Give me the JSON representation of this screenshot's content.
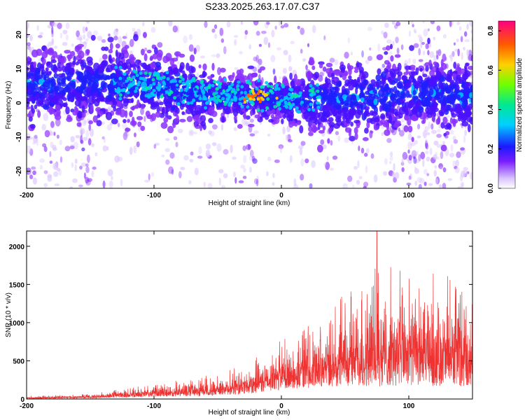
{
  "title": "S233.2025.263.17.07.C37",
  "chart_data": [
    {
      "type": "heatmap",
      "xlabel": "Height of straight line (km)",
      "ylabel": "Frequency (Hz)",
      "xlim": [
        -200,
        150
      ],
      "ylim": [
        -25,
        24
      ],
      "xticks": [
        -200,
        -100,
        0,
        100
      ],
      "xtick_labels": [
        "-200",
        "-100",
        "0",
        "100"
      ],
      "yticks": [
        -20,
        -10,
        0,
        10,
        20
      ],
      "ytick_labels": [
        "-20",
        "-10",
        "0",
        "10",
        "20"
      ],
      "colorbar": {
        "label": "Normalized spectral amplitude",
        "range": [
          0.0,
          0.85
        ],
        "ticks": [
          0.0,
          0.2,
          0.4,
          0.6,
          0.8
        ],
        "tick_labels": [
          "0.0",
          "0.2",
          "0.4",
          "0.6",
          "0.8"
        ]
      },
      "band_center_hz": [
        [
          -200,
          5
        ],
        [
          -150,
          6
        ],
        [
          -100,
          5
        ],
        [
          -60,
          2
        ],
        [
          -30,
          2
        ],
        [
          0,
          1
        ],
        [
          50,
          1
        ],
        [
          100,
          3
        ],
        [
          150,
          2
        ]
      ],
      "hotspots": [
        {
          "x": -40,
          "y": 3,
          "value": 0.45
        },
        {
          "x": -22,
          "y": 1.5,
          "value": 0.8
        },
        {
          "x": -15,
          "y": 2,
          "value": 0.75
        },
        {
          "x": -70,
          "y": 3,
          "value": 0.3
        },
        {
          "x": -85,
          "y": 5,
          "value": 0.35
        }
      ]
    },
    {
      "type": "line",
      "xlabel": "Height of straight line (km)",
      "ylabel": "SNR (10 * v/v)",
      "xlim": [
        -200,
        150
      ],
      "ylim": [
        0,
        2200
      ],
      "xticks": [
        -200,
        -100,
        0,
        100
      ],
      "xtick_labels": [
        "-200",
        "-100",
        "0",
        "100"
      ],
      "yticks": [
        0,
        500,
        1000,
        1500,
        2000
      ],
      "ytick_labels": [
        "0",
        "500",
        "1000",
        "1500",
        "2000"
      ],
      "color": "#ee3333",
      "envelope": [
        {
          "x": -200,
          "base": 5,
          "peak": 30
        },
        {
          "x": -150,
          "base": 10,
          "peak": 60
        },
        {
          "x": -120,
          "base": 20,
          "peak": 120
        },
        {
          "x": -100,
          "base": 30,
          "peak": 170
        },
        {
          "x": -60,
          "base": 40,
          "peak": 250
        },
        {
          "x": -30,
          "base": 60,
          "peak": 380
        },
        {
          "x": 0,
          "base": 120,
          "peak": 650
        },
        {
          "x": 30,
          "base": 150,
          "peak": 950
        },
        {
          "x": 50,
          "base": 170,
          "peak": 1150
        },
        {
          "x": 75,
          "base": 160,
          "peak": 1450
        },
        {
          "x": 100,
          "base": 170,
          "peak": 1450
        },
        {
          "x": 130,
          "base": 170,
          "peak": 1350
        },
        {
          "x": 150,
          "base": 170,
          "peak": 1200
        }
      ],
      "max_point": {
        "x": 75,
        "y": 2200
      }
    }
  ]
}
